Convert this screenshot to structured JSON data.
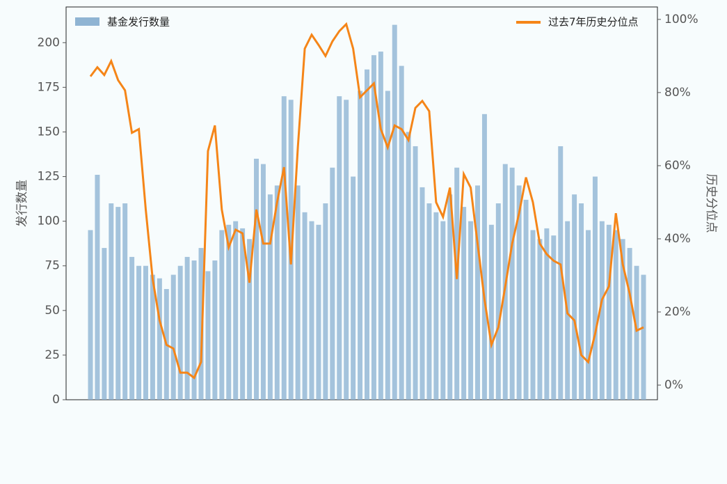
{
  "chart_data": {
    "type": "bar-line",
    "y_label": "发行数量",
    "y2_label": "历史分位点",
    "categories": [
      null,
      null,
      null,
      null,
      null,
      null,
      null,
      null,
      null,
      null,
      null,
      null,
      null,
      null,
      null,
      null,
      null,
      null,
      null,
      null,
      null,
      null,
      null,
      null,
      null,
      null,
      null,
      null,
      null,
      null,
      null,
      null,
      null,
      null,
      null,
      null,
      null,
      null,
      null,
      null,
      null,
      null,
      null,
      null,
      null,
      null,
      null,
      null,
      null,
      null,
      null,
      null,
      null,
      null,
      null,
      null,
      null,
      null,
      null,
      null,
      null,
      null,
      null,
      null,
      null,
      null,
      null,
      null,
      null,
      null,
      null,
      null,
      null,
      null,
      null,
      null,
      null,
      null,
      null,
      null,
      null
    ],
    "series": [
      {
        "name": "基金发行数量",
        "color": "#8fb4d3",
        "values": [
          95,
          126,
          85,
          110,
          108,
          110,
          80,
          75,
          75,
          70,
          68,
          62,
          70,
          75,
          80,
          78,
          85,
          72,
          78,
          95,
          98,
          100,
          96,
          90,
          135,
          132,
          115,
          120,
          170,
          168,
          120,
          105,
          100,
          98,
          110,
          130,
          170,
          168,
          125,
          173,
          185,
          193,
          195,
          173,
          210,
          187,
          150,
          142,
          119,
          110,
          105,
          100,
          115,
          130,
          108,
          100,
          120,
          160,
          98,
          110,
          132,
          130,
          120,
          112,
          95,
          90,
          96,
          92,
          142,
          100,
          115,
          110,
          95,
          125,
          100,
          98,
          95,
          90,
          85,
          75,
          70
        ]
      },
      {
        "name": "过去7年历史分位点",
        "color": "#f58518",
        "axis": "y2",
        "values": [
          84.4,
          86.9,
          84.8,
          88.6,
          83.4,
          80.6,
          69,
          70,
          48,
          29,
          17.7,
          11,
          10,
          3.4,
          3.4,
          2,
          6.3,
          64,
          71,
          48,
          37.7,
          42.5,
          41.5,
          28,
          48,
          38.7,
          38.7,
          50,
          59.6,
          33,
          65,
          92,
          95.8,
          93,
          90,
          94,
          96.8,
          98.7,
          92,
          78.7,
          80.6,
          82.5,
          70,
          65,
          71,
          70,
          67,
          75.8,
          77.7,
          74.9,
          50,
          46,
          54,
          29,
          57.7,
          54,
          38.7,
          23.4,
          11,
          15.8,
          27,
          38.7,
          47,
          56.8,
          50,
          38.7,
          35.8,
          34,
          33,
          19.6,
          17.7,
          8.2,
          6.3,
          14,
          23.4,
          27,
          47,
          33,
          25,
          14.9,
          15.8
        ]
      }
    ],
    "ylim": [
      0,
      220
    ],
    "yticks": [
      0,
      25,
      50,
      75,
      100,
      125,
      150,
      175,
      200
    ],
    "y2lim": [
      -4,
      103.4
    ],
    "y2ticks": [
      {
        "value": 0,
        "label": "0%"
      },
      {
        "value": 20,
        "label": "20%"
      },
      {
        "value": 40,
        "label": "40%"
      },
      {
        "value": 60,
        "label": "60%"
      },
      {
        "value": 80,
        "label": "80%"
      },
      {
        "value": 100,
        "label": "100%"
      }
    ],
    "legend": "top"
  }
}
